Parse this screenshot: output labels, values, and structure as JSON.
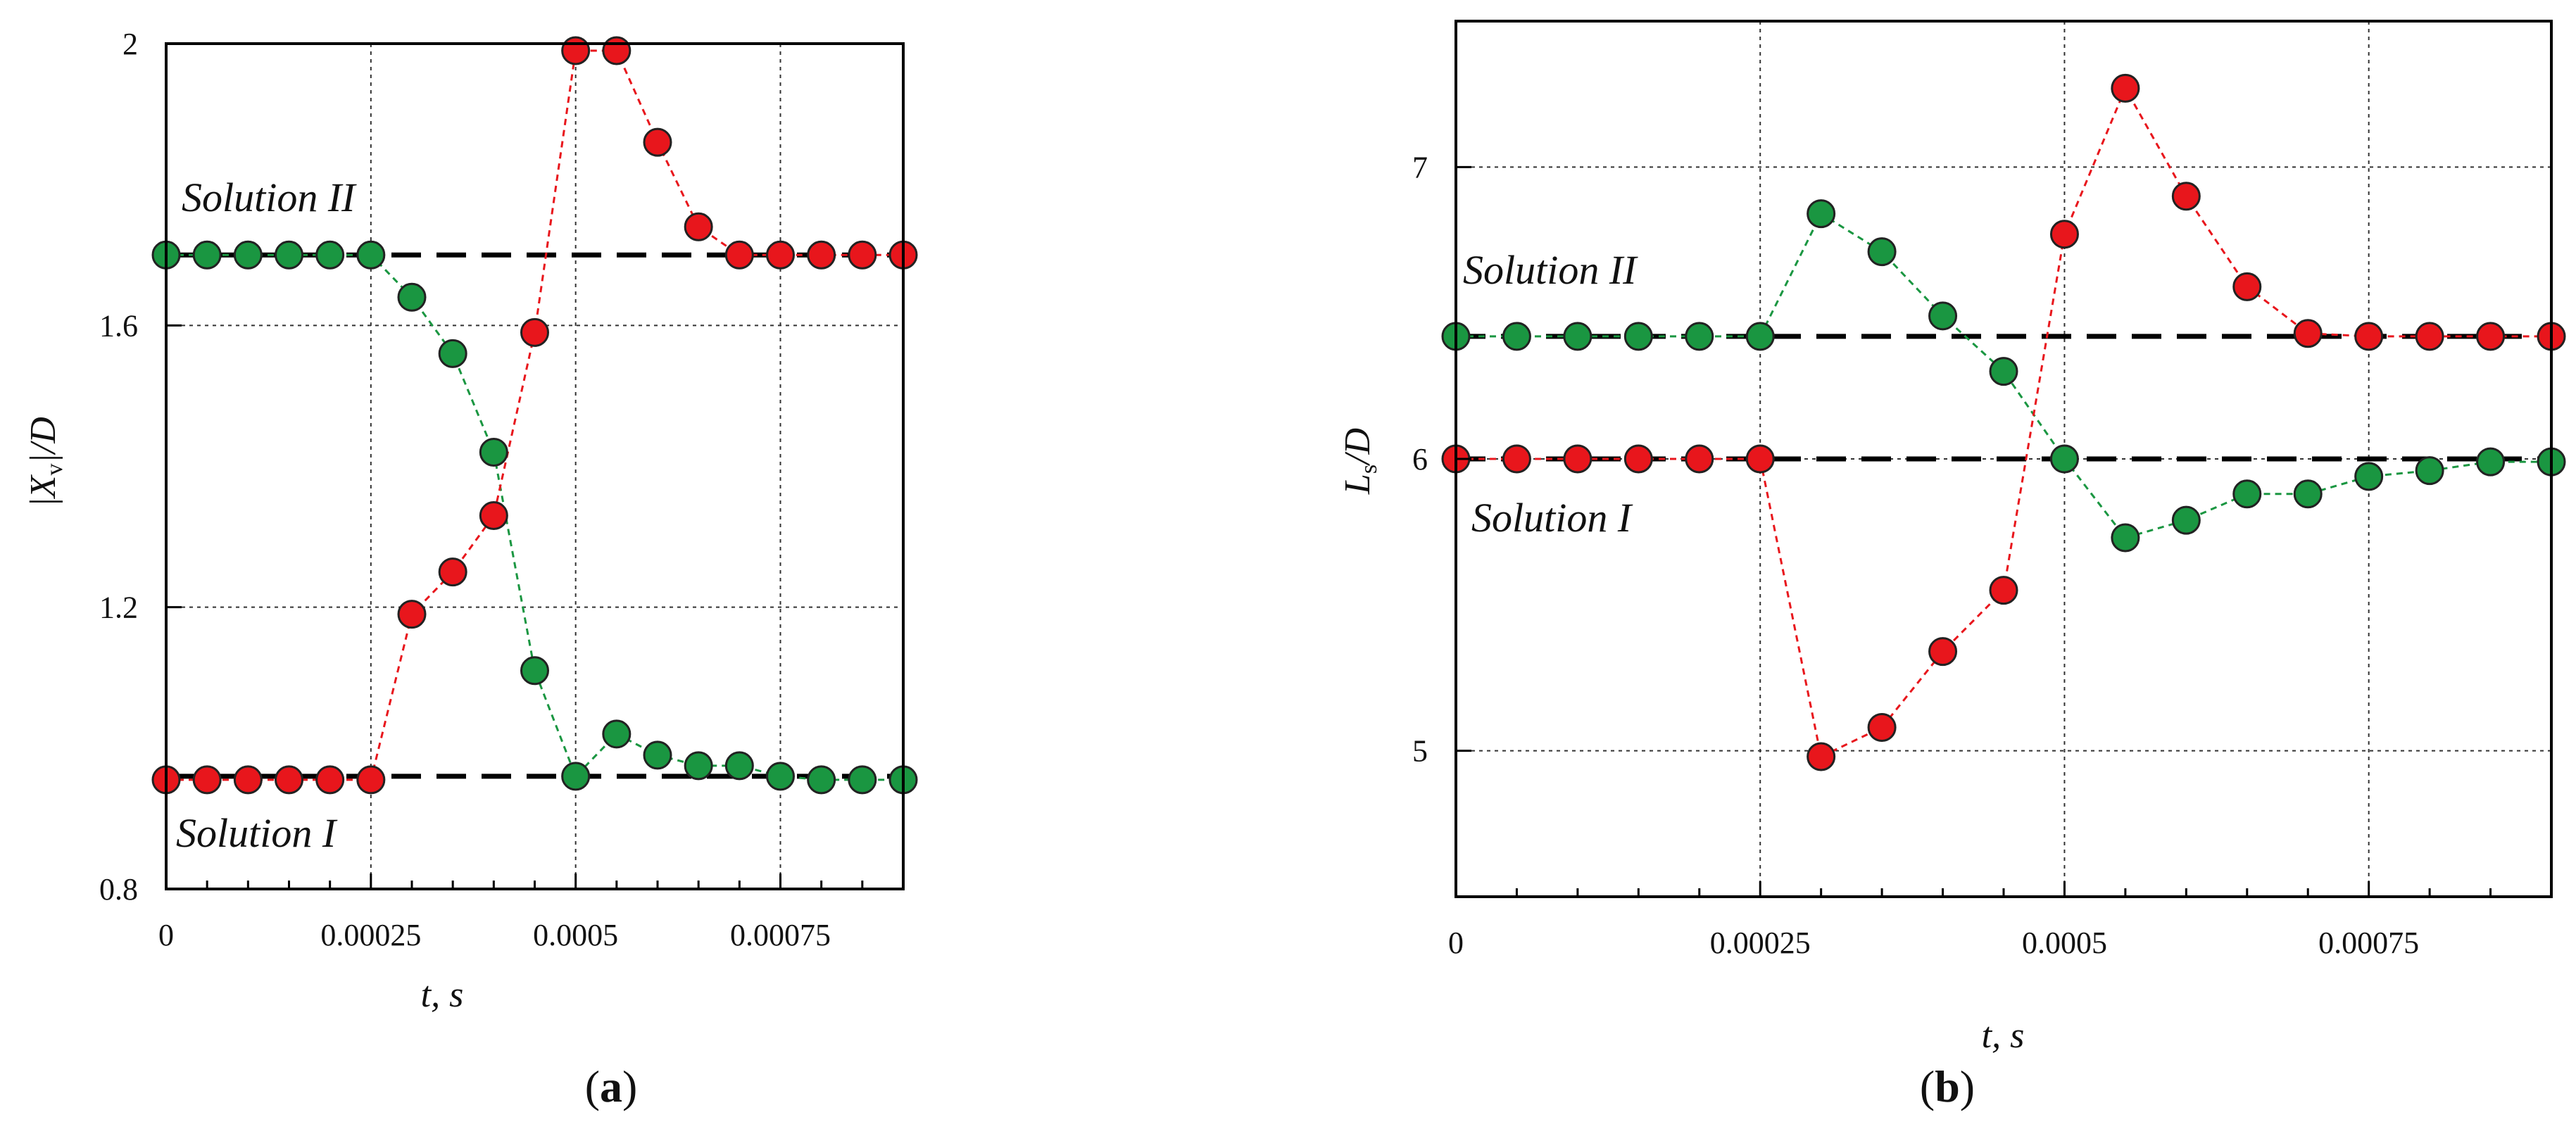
{
  "chart_data": [
    {
      "type": "line",
      "panel_label": {
        "open": "(",
        "letter": "a",
        "close": ")"
      },
      "xlabel": "t, s",
      "ylabel": "|X_v|/D",
      "ylabel_parts": {
        "open": "|",
        "main": "X",
        "sub": "v",
        "close": "|/D"
      },
      "xlim": [
        0,
        0.0009
      ],
      "ylim": [
        0.8,
        2
      ],
      "xticks": [
        0,
        0.00025,
        0.0005,
        0.00075
      ],
      "xtick_labels": [
        "0",
        "0.00025",
        "0.0005",
        "0.00075"
      ],
      "yticks": [
        0.8,
        1.2,
        1.6,
        2
      ],
      "ytick_labels": [
        "0.8",
        "1.2",
        "1.6",
        "2"
      ],
      "grid": true,
      "reference_lines": [
        {
          "name": "Solution II",
          "y": 1.7
        },
        {
          "name": "Solution I",
          "y": 0.96
        }
      ],
      "annotations": [
        {
          "text": "Solution II",
          "x": 0.0,
          "y": 1.79
        },
        {
          "text": "Solution I",
          "x": 0.0,
          "y": 0.87
        }
      ],
      "series": [
        {
          "name": "green",
          "color": "#1a9641",
          "x": [
            0,
            5e-05,
            0.0001,
            0.00015,
            0.0002,
            0.00025,
            0.0003,
            0.00035,
            0.0004,
            0.00045,
            0.0005,
            0.00055,
            0.0006,
            0.00065,
            0.0007,
            0.00075,
            0.0008,
            0.00085,
            0.0009
          ],
          "y": [
            1.7,
            1.7,
            1.7,
            1.7,
            1.7,
            1.7,
            1.64,
            1.56,
            1.42,
            1.11,
            0.96,
            1.02,
            0.99,
            0.975,
            0.975,
            0.96,
            0.955,
            0.955,
            0.955
          ]
        },
        {
          "name": "red",
          "color": "#e8161c",
          "x": [
            0,
            5e-05,
            0.0001,
            0.00015,
            0.0002,
            0.00025,
            0.0003,
            0.00035,
            0.0004,
            0.00045,
            0.0005,
            0.00055,
            0.0006,
            0.00065,
            0.0007,
            0.00075,
            0.0008,
            0.00085,
            0.0009
          ],
          "y": [
            0.955,
            0.955,
            0.955,
            0.955,
            0.955,
            0.955,
            1.19,
            1.25,
            1.33,
            1.59,
            1.99,
            1.99,
            1.86,
            1.74,
            1.7,
            1.7,
            1.7,
            1.7,
            1.7
          ]
        }
      ]
    },
    {
      "type": "line",
      "panel_label": {
        "open": "(",
        "letter": "b",
        "close": ")"
      },
      "xlabel": "t, s",
      "ylabel": "L_s/D",
      "ylabel_parts": {
        "main": "L",
        "sub": "s",
        "close": "/D"
      },
      "xlim": [
        0,
        0.0009
      ],
      "ylim": [
        4.5,
        7.5
      ],
      "xticks": [
        0,
        0.00025,
        0.0005,
        0.00075
      ],
      "xtick_labels": [
        "0",
        "0.00025",
        "0.0005",
        "0.00075"
      ],
      "yticks": [
        5,
        6,
        7
      ],
      "ytick_labels": [
        "5",
        "6",
        "7"
      ],
      "grid": true,
      "reference_lines": [
        {
          "name": "Solution II",
          "y": 6.42
        },
        {
          "name": "Solution I",
          "y": 6.0
        }
      ],
      "annotations": [
        {
          "text": "Solution II",
          "x": 0.0,
          "y": 6.5
        },
        {
          "text": "Solution I",
          "x": 1e-05,
          "y": 5.8
        }
      ],
      "series": [
        {
          "name": "green",
          "color": "#1a9641",
          "x": [
            0,
            5e-05,
            0.0001,
            0.00015,
            0.0002,
            0.00025,
            0.0003,
            0.00035,
            0.0004,
            0.00045,
            0.0005,
            0.00055,
            0.0006,
            0.00065,
            0.0007,
            0.00075,
            0.0008,
            0.00085,
            0.0009
          ],
          "y": [
            6.42,
            6.42,
            6.42,
            6.42,
            6.42,
            6.42,
            6.84,
            6.71,
            6.49,
            6.3,
            6.0,
            5.73,
            5.79,
            5.88,
            5.88,
            5.94,
            5.96,
            5.99,
            5.99
          ]
        },
        {
          "name": "red",
          "color": "#e8161c",
          "x": [
            0,
            5e-05,
            0.0001,
            0.00015,
            0.0002,
            0.00025,
            0.0003,
            0.00035,
            0.0004,
            0.00045,
            0.0005,
            0.00055,
            0.0006,
            0.00065,
            0.0007,
            0.00075,
            0.0008,
            0.00085,
            0.0009
          ],
          "y": [
            6.0,
            6.0,
            6.0,
            6.0,
            6.0,
            6.0,
            4.98,
            5.08,
            5.34,
            5.55,
            6.77,
            7.27,
            6.9,
            6.59,
            6.43,
            6.42,
            6.42,
            6.42,
            6.42
          ]
        }
      ]
    }
  ]
}
